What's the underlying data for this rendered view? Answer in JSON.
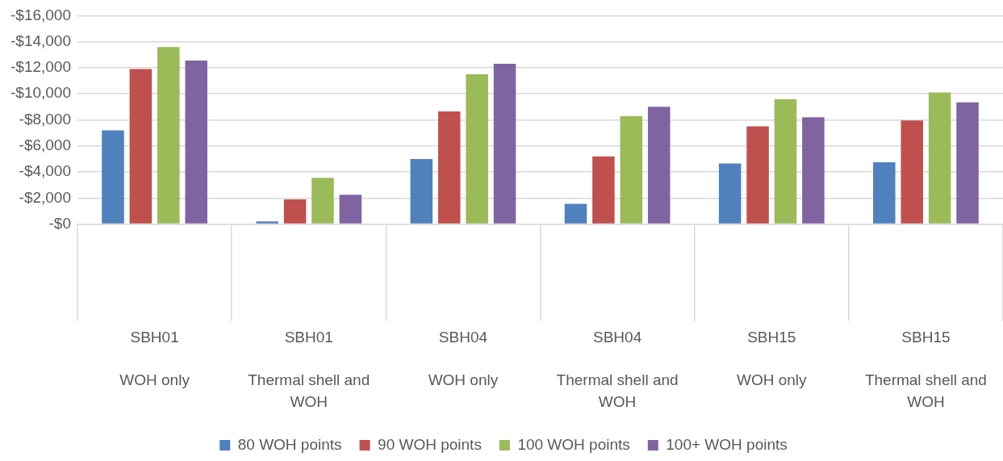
{
  "chart_data": {
    "type": "bar",
    "categories": [
      "SBH01\nWOH only",
      "SBH01\nThermal shell and WOH",
      "SBH04\nWOH only",
      "SBH04\nThermal shell and WOH",
      "SBH15\nWOH only",
      "SBH15\nThermal shell and WOH"
    ],
    "series": [
      {
        "name": "80 WOH points",
        "color": "#4f81bd",
        "values": [
          -7200,
          -200,
          -5000,
          -1550,
          -4650,
          -4750
        ]
      },
      {
        "name": "90 WOH points",
        "color": "#c0504d",
        "values": [
          -11900,
          -1900,
          -8650,
          -5200,
          -7500,
          -7950
        ]
      },
      {
        "name": "100 WOH points",
        "color": "#9bbb59",
        "values": [
          -13600,
          -3550,
          -11500,
          -8300,
          -9600,
          -10100
        ]
      },
      {
        "name": "100+ WOH points",
        "color": "#8064a2",
        "values": [
          -12550,
          -2250,
          -12300,
          -9000,
          -8200,
          -9350
        ]
      }
    ],
    "ylim": [
      0,
      -16000
    ],
    "yticks": [
      {
        "value": 0,
        "label": "-$0"
      },
      {
        "value": -2000,
        "label": "-$2,000"
      },
      {
        "value": -4000,
        "label": "-$4,000"
      },
      {
        "value": -6000,
        "label": "-$6,000"
      },
      {
        "value": -8000,
        "label": "-$8,000"
      },
      {
        "value": -10000,
        "label": "-$10,000"
      },
      {
        "value": -12000,
        "label": "-$12,000"
      },
      {
        "value": -14000,
        "label": "-$14,000"
      },
      {
        "value": -16000,
        "label": "-$16,000"
      }
    ],
    "grid": "y",
    "legend": "bottom"
  }
}
